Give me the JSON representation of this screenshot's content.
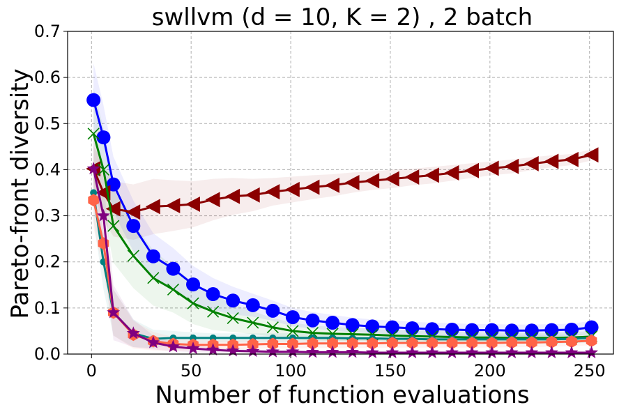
{
  "chart_data": {
    "type": "line",
    "title": "swllvm (d = 10, K = 2) , 2 batch",
    "xlabel": "Number of function evaluations",
    "ylabel": "Pareto-front diversity",
    "xlim": [
      -12,
      262
    ],
    "ylim": [
      0.0,
      0.7
    ],
    "xticks": [
      0,
      50,
      100,
      150,
      200,
      250
    ],
    "xtick_labels": [
      "0",
      "50",
      "100",
      "150",
      "200",
      "250"
    ],
    "yticks": [
      0.0,
      0.1,
      0.2,
      0.3,
      0.4,
      0.5,
      0.6,
      0.7
    ],
    "ytick_labels": [
      "0.0",
      "0.1",
      "0.2",
      "0.3",
      "0.4",
      "0.5",
      "0.6",
      "0.7"
    ],
    "grid": true,
    "x": [
      1,
      6,
      11,
      21,
      31,
      41,
      51,
      61,
      71,
      81,
      91,
      101,
      111,
      121,
      131,
      141,
      151,
      161,
      171,
      181,
      191,
      201,
      211,
      221,
      231,
      241,
      251
    ],
    "series": [
      {
        "name": "blue-circle",
        "color": "#0000ff",
        "marker": "circle",
        "values": [
          0.551,
          0.47,
          0.368,
          0.278,
          0.212,
          0.185,
          0.151,
          0.13,
          0.116,
          0.106,
          0.094,
          0.08,
          0.073,
          0.068,
          0.063,
          0.06,
          0.058,
          0.056,
          0.054,
          0.053,
          0.052,
          0.052,
          0.051,
          0.051,
          0.052,
          0.053,
          0.058
        ],
        "band": [
          0.08,
          0.07,
          0.06,
          0.055,
          0.05,
          0.045,
          0.04,
          0.035,
          0.03,
          0.025,
          0.022,
          0.02,
          0.018,
          0.017,
          0.016,
          0.015,
          0.015,
          0.014,
          0.014,
          0.014,
          0.013,
          0.013,
          0.013,
          0.013,
          0.013,
          0.013,
          0.014
        ]
      },
      {
        "name": "darkred-triangle",
        "color": "#8b0000",
        "marker": "triangle-left",
        "values": [
          0.402,
          0.35,
          0.315,
          0.308,
          0.32,
          0.322,
          0.325,
          0.335,
          0.342,
          0.345,
          0.352,
          0.357,
          0.362,
          0.366,
          0.372,
          0.376,
          0.38,
          0.384,
          0.388,
          0.393,
          0.398,
          0.403,
          0.407,
          0.413,
          0.418,
          0.422,
          0.432
        ],
        "band": [
          0.05,
          0.06,
          0.06,
          0.06,
          0.06,
          0.055,
          0.05,
          0.045,
          0.04,
          0.035,
          0.03,
          0.028,
          0.026,
          0.024,
          0.022,
          0.02,
          0.02,
          0.018,
          0.018,
          0.017,
          0.016,
          0.015,
          0.015,
          0.014,
          0.013,
          0.012,
          0.012
        ]
      },
      {
        "name": "green-x",
        "color": "#008000",
        "marker": "x",
        "values": [
          0.478,
          0.4,
          0.278,
          0.213,
          0.165,
          0.14,
          0.11,
          0.092,
          0.078,
          0.068,
          0.058,
          0.05,
          0.046,
          0.044,
          0.043,
          0.042,
          0.04,
          0.039,
          0.038,
          0.037,
          0.036,
          0.036,
          0.035,
          0.035,
          0.035,
          0.036,
          0.038
        ],
        "band": [
          0.1,
          0.09,
          0.08,
          0.07,
          0.06,
          0.05,
          0.045,
          0.04,
          0.03,
          0.025,
          0.02,
          0.018,
          0.016,
          0.015,
          0.014,
          0.013,
          0.013,
          0.012,
          0.012,
          0.012,
          0.011,
          0.011,
          0.011,
          0.011,
          0.011,
          0.011,
          0.012
        ]
      },
      {
        "name": "teal-dot",
        "color": "#008080",
        "marker": "small-circle",
        "values": [
          0.35,
          0.2,
          0.09,
          0.045,
          0.033,
          0.035,
          0.035,
          0.035,
          0.035,
          0.035,
          0.035,
          0.035,
          0.035,
          0.035,
          0.034,
          0.034,
          0.033,
          0.033,
          0.032,
          0.032,
          0.032,
          0.032,
          0.032,
          0.032,
          0.032,
          0.033,
          0.035
        ],
        "band": [
          0.06,
          0.06,
          0.05,
          0.03,
          0.02,
          0.015,
          0.012,
          0.01,
          0.01,
          0.01,
          0.01,
          0.01,
          0.01,
          0.01,
          0.01,
          0.01,
          0.01,
          0.01,
          0.01,
          0.01,
          0.01,
          0.01,
          0.01,
          0.01,
          0.01,
          0.01,
          0.01
        ]
      },
      {
        "name": "tomato-hexagon",
        "color": "#ff6347",
        "marker": "hexagon",
        "values": [
          0.334,
          0.24,
          0.09,
          0.042,
          0.028,
          0.022,
          0.02,
          0.02,
          0.02,
          0.021,
          0.022,
          0.022,
          0.023,
          0.023,
          0.023,
          0.023,
          0.024,
          0.024,
          0.024,
          0.024,
          0.024,
          0.024,
          0.025,
          0.025,
          0.026,
          0.027,
          0.029
        ],
        "band": [
          0.06,
          0.06,
          0.05,
          0.03,
          0.02,
          0.015,
          0.012,
          0.01,
          0.01,
          0.01,
          0.01,
          0.01,
          0.01,
          0.01,
          0.01,
          0.01,
          0.01,
          0.01,
          0.01,
          0.01,
          0.01,
          0.01,
          0.01,
          0.01,
          0.01,
          0.01,
          0.01
        ]
      },
      {
        "name": "purple-star",
        "color": "#800080",
        "marker": "star",
        "values": [
          0.402,
          0.3,
          0.09,
          0.045,
          0.025,
          0.016,
          0.012,
          0.009,
          0.007,
          0.006,
          0.005,
          0.005,
          0.004,
          0.004,
          0.004,
          0.003,
          0.003,
          0.003,
          0.003,
          0.003,
          0.003,
          0.003,
          0.003,
          0.003,
          0.003,
          0.003,
          0.003
        ],
        "band": [
          0.08,
          0.08,
          0.06,
          0.03,
          0.015,
          0.01,
          0.008,
          0.006,
          0.005,
          0.004,
          0.004,
          0.003,
          0.003,
          0.003,
          0.003,
          0.002,
          0.002,
          0.002,
          0.002,
          0.002,
          0.002,
          0.002,
          0.002,
          0.002,
          0.002,
          0.002,
          0.002
        ]
      }
    ]
  }
}
